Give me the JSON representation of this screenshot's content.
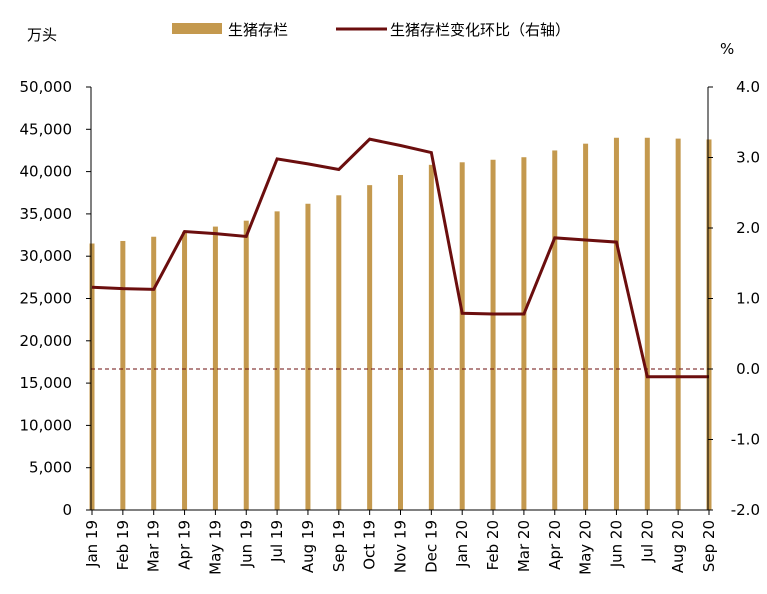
{
  "chart_data": {
    "type": "bar+line",
    "categories": [
      "Jan 19",
      "Feb 19",
      "Mar 19",
      "Apr 19",
      "May 19",
      "Jun 19",
      "Jul 19",
      "Aug 19",
      "Sep 19",
      "Oct 19",
      "Nov 19",
      "Dec 19",
      "Jan 20",
      "Feb 20",
      "Mar 20",
      "Apr 20",
      "May 20",
      "Jun 20",
      "Jul 20",
      "Aug 20",
      "Sep 20"
    ],
    "series": [
      {
        "name": "生猪存栏",
        "type": "bar",
        "axis": "left",
        "color": "#C4994E",
        "values": [
          31500,
          31800,
          32300,
          32900,
          33500,
          34200,
          35300,
          36200,
          37200,
          38400,
          39600,
          40800,
          41100,
          41400,
          41700,
          42500,
          43300,
          44000,
          44000,
          43900,
          43800
        ]
      },
      {
        "name": "生猪存栏变化环比（右轴）",
        "type": "line",
        "axis": "right",
        "color": "#6B0E0E",
        "values": [
          1.16,
          1.14,
          1.13,
          1.95,
          1.92,
          1.88,
          2.98,
          2.91,
          2.83,
          3.26,
          3.17,
          3.07,
          0.79,
          0.78,
          0.78,
          1.86,
          1.83,
          1.8,
          -0.11,
          -0.11,
          -0.11
        ]
      }
    ],
    "left_axis": {
      "unit": "万头",
      "ylim": [
        0,
        50000
      ],
      "ticks": [
        0,
        5000,
        10000,
        15000,
        20000,
        25000,
        30000,
        35000,
        40000,
        45000,
        50000
      ],
      "tick_labels": [
        "0",
        "5,000",
        "10,000",
        "15,000",
        "20,000",
        "25,000",
        "30,000",
        "35,000",
        "40,000",
        "45,000",
        "50,000"
      ]
    },
    "right_axis": {
      "unit": "%",
      "ylim": [
        -2.0,
        4.0
      ],
      "ticks": [
        -2.0,
        -1.0,
        0.0,
        1.0,
        2.0,
        3.0,
        4.0
      ],
      "tick_labels": [
        "-2.0",
        "-1.0",
        "0.0",
        "1.0",
        "2.0",
        "3.0",
        "4.0"
      ]
    },
    "reference_line": {
      "axis": "right",
      "value": 0.0,
      "style": "dashed",
      "color": "#6B0E0E"
    },
    "grid": false,
    "legend_position": "top"
  }
}
